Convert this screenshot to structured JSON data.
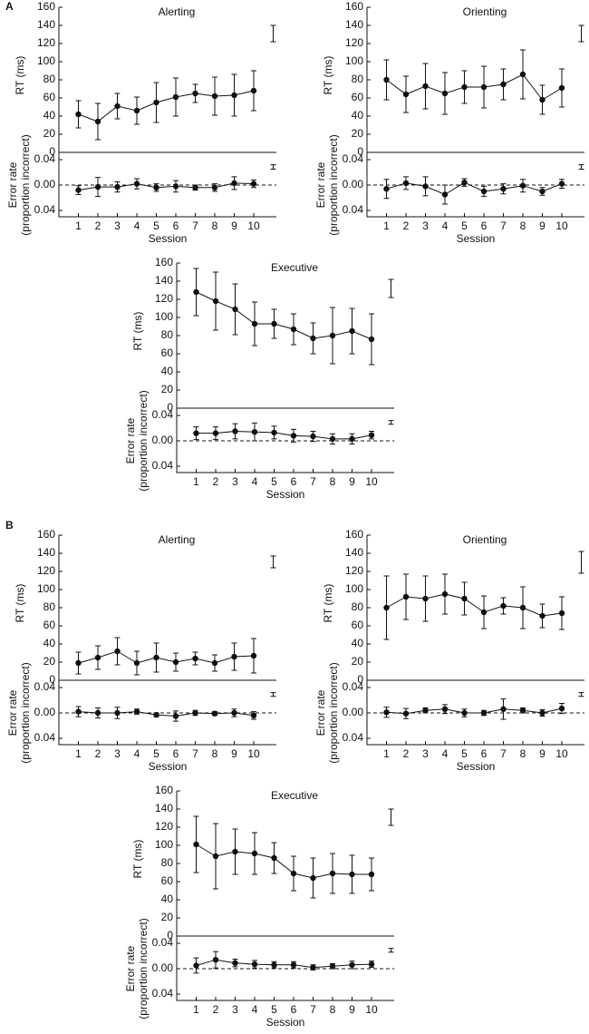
{
  "labels": [
    "A",
    "B"
  ],
  "chart_data": [
    {
      "type": "line",
      "title": "Alerting",
      "categories": [
        1,
        2,
        3,
        4,
        5,
        6,
        7,
        8,
        9,
        10
      ],
      "xlabel": "Session",
      "rt": {
        "ylabel": "RT (ms)",
        "ylim": [
          0,
          160
        ],
        "yticks": [
          0,
          20,
          40,
          60,
          80,
          100,
          120,
          140,
          160
        ],
        "values": [
          42,
          34,
          51,
          46,
          55,
          61,
          65,
          62,
          63,
          68
        ],
        "errors": [
          15,
          20,
          14,
          15,
          22,
          21,
          10,
          21,
          23,
          22
        ],
        "ref": [
          122,
          140
        ]
      },
      "er": {
        "ylabel": [
          "Error rate",
          "(proportion incorrect)"
        ],
        "ylim": [
          -0.05,
          0.05
        ],
        "yticks": [
          0.04,
          {
            "value": 0,
            "label": "0.00"
          },
          {
            "value": -0.04,
            "label": "0.04"
          }
        ],
        "values": [
          -0.008,
          -0.003,
          -0.003,
          0.002,
          -0.004,
          -0.002,
          -0.004,
          -0.004,
          0.003,
          0.002
        ],
        "errors": [
          0.007,
          0.015,
          0.008,
          0.008,
          0.006,
          0.009,
          0.004,
          0.006,
          0.01,
          0.006
        ],
        "ref": [
          0.025,
          0.032
        ]
      }
    },
    {
      "type": "line",
      "title": "Orienting",
      "categories": [
        1,
        2,
        3,
        4,
        5,
        6,
        7,
        8,
        9,
        10
      ],
      "xlabel": "Session",
      "rt": {
        "ylabel": "RT (ms)",
        "ylim": [
          0,
          160
        ],
        "yticks": [
          0,
          20,
          40,
          60,
          80,
          100,
          120,
          140,
          160
        ],
        "values": [
          80,
          64,
          73,
          65,
          72,
          72,
          75,
          86,
          58,
          71
        ],
        "errors": [
          22,
          20,
          25,
          23,
          18,
          23,
          17,
          27,
          16,
          21
        ],
        "ref": [
          122,
          140
        ]
      },
      "er": {
        "ylabel": [
          "Error rate",
          "(proportion incorrect)"
        ],
        "ylim": [
          -0.05,
          0.05
        ],
        "yticks": [
          0.04,
          {
            "value": 0,
            "label": "0.00"
          },
          {
            "value": -0.04,
            "label": "0.04"
          }
        ],
        "values": [
          -0.006,
          0.003,
          -0.002,
          -0.015,
          0.004,
          -0.01,
          -0.006,
          -0.001,
          -0.01,
          0.002
        ],
        "errors": [
          0.015,
          0.01,
          0.015,
          0.015,
          0.006,
          0.008,
          0.008,
          0.01,
          0.006,
          0.007
        ],
        "ref": [
          0.025,
          0.032
        ]
      }
    },
    {
      "type": "line",
      "title": "Executive",
      "categories": [
        1,
        2,
        3,
        4,
        5,
        6,
        7,
        8,
        9,
        10
      ],
      "xlabel": "Session",
      "rt": {
        "ylabel": "RT (ms)",
        "ylim": [
          0,
          160
        ],
        "yticks": [
          0,
          20,
          40,
          60,
          80,
          100,
          120,
          140,
          160
        ],
        "values": [
          128,
          118,
          109,
          93,
          93,
          87,
          77,
          80,
          85,
          76
        ],
        "errors": [
          26,
          32,
          28,
          24,
          16,
          17,
          17,
          31,
          25,
          28
        ],
        "ref": [
          122,
          142
        ]
      },
      "er": {
        "ylabel": [
          "Error rate",
          "(proportion incorrect)"
        ],
        "ylim": [
          -0.05,
          0.05
        ],
        "yticks": [
          0.04,
          {
            "value": 0,
            "label": "0.00"
          },
          {
            "value": -0.04,
            "label": "0.04"
          }
        ],
        "values": [
          0.012,
          0.012,
          0.015,
          0.014,
          0.013,
          0.008,
          0.007,
          0.003,
          0.003,
          0.009
        ],
        "errors": [
          0.01,
          0.01,
          0.012,
          0.014,
          0.01,
          0.01,
          0.008,
          0.008,
          0.008,
          0.006
        ],
        "ref": [
          0.026,
          0.032
        ]
      }
    },
    {
      "type": "line",
      "title": "Alerting",
      "categories": [
        1,
        2,
        3,
        4,
        5,
        6,
        7,
        8,
        9,
        10
      ],
      "xlabel": "Session",
      "rt": {
        "ylabel": "RT (ms)",
        "ylim": [
          0,
          160
        ],
        "yticks": [
          0,
          20,
          40,
          60,
          80,
          100,
          120,
          140,
          160
        ],
        "values": [
          19,
          25,
          32,
          19,
          25,
          20,
          24,
          19,
          26,
          27
        ],
        "errors": [
          12,
          13,
          15,
          13,
          16,
          10,
          7,
          9,
          15,
          19
        ],
        "ref": [
          124,
          137
        ]
      },
      "er": {
        "ylabel": [
          "Error rate",
          "(proportion incorrect)"
        ],
        "ylim": [
          -0.05,
          0.05
        ],
        "yticks": [
          0.04,
          {
            "value": 0,
            "label": "0.00"
          },
          {
            "value": -0.04,
            "label": "0.04"
          }
        ],
        "values": [
          0.002,
          0,
          0,
          0.002,
          -0.003,
          -0.005,
          0,
          -0.001,
          0,
          -0.004
        ],
        "errors": [
          0.008,
          0.008,
          0.009,
          0.004,
          0.003,
          0.008,
          0.004,
          0.003,
          0.006,
          0.006
        ],
        "ref": [
          0.026,
          0.032
        ]
      }
    },
    {
      "type": "line",
      "title": "Orienting",
      "categories": [
        1,
        2,
        3,
        4,
        5,
        6,
        7,
        8,
        9,
        10
      ],
      "xlabel": "Session",
      "rt": {
        "ylabel": "RT (ms)",
        "ylim": [
          0,
          160
        ],
        "yticks": [
          0,
          20,
          40,
          60,
          80,
          100,
          120,
          140,
          160
        ],
        "values": [
          80,
          92,
          90,
          95,
          90,
          75,
          82,
          80,
          71,
          74
        ],
        "errors": [
          35,
          25,
          25,
          22,
          18,
          18,
          9,
          23,
          13,
          18
        ],
        "ref": [
          118,
          142
        ]
      },
      "er": {
        "ylabel": [
          "Error rate",
          "(proportion incorrect)"
        ],
        "ylim": [
          -0.05,
          0.05
        ],
        "yticks": [
          0.04,
          {
            "value": 0,
            "label": "0.00"
          },
          {
            "value": -0.04,
            "label": "0.04"
          }
        ],
        "values": [
          0.001,
          -0.001,
          0.004,
          0.006,
          0,
          0,
          0.006,
          0.004,
          0,
          0.007
        ],
        "errors": [
          0.008,
          0.008,
          0.004,
          0.007,
          0.006,
          0.004,
          0.016,
          0.004,
          0.005,
          0.008
        ],
        "ref": [
          0.026,
          0.032
        ]
      }
    },
    {
      "type": "line",
      "title": "Executive",
      "categories": [
        1,
        2,
        3,
        4,
        5,
        6,
        7,
        8,
        9,
        10
      ],
      "xlabel": "Session",
      "rt": {
        "ylabel": "RT (ms)",
        "ylim": [
          0,
          160
        ],
        "yticks": [
          0,
          20,
          40,
          60,
          80,
          100,
          120,
          140,
          160
        ],
        "values": [
          101,
          88,
          93,
          91,
          86,
          69,
          64,
          69,
          68,
          68
        ],
        "errors": [
          31,
          36,
          25,
          23,
          17,
          19,
          22,
          22,
          21,
          18
        ],
        "ref": [
          122,
          140
        ]
      },
      "er": {
        "ylabel": [
          "Error rate",
          "(proportion incorrect)"
        ],
        "ylim": [
          -0.05,
          0.05
        ],
        "yticks": [
          0.04,
          {
            "value": 0,
            "label": "0.00"
          },
          {
            "value": -0.04,
            "label": "0.04"
          }
        ],
        "values": [
          0.005,
          0.014,
          0.009,
          0.007,
          0.006,
          0.006,
          0.002,
          0.004,
          0.006,
          0.007
        ],
        "errors": [
          0.012,
          0.013,
          0.006,
          0.006,
          0.005,
          0.005,
          0.004,
          0.004,
          0.006,
          0.005
        ],
        "ref": [
          0.026,
          0.032
        ]
      }
    }
  ]
}
